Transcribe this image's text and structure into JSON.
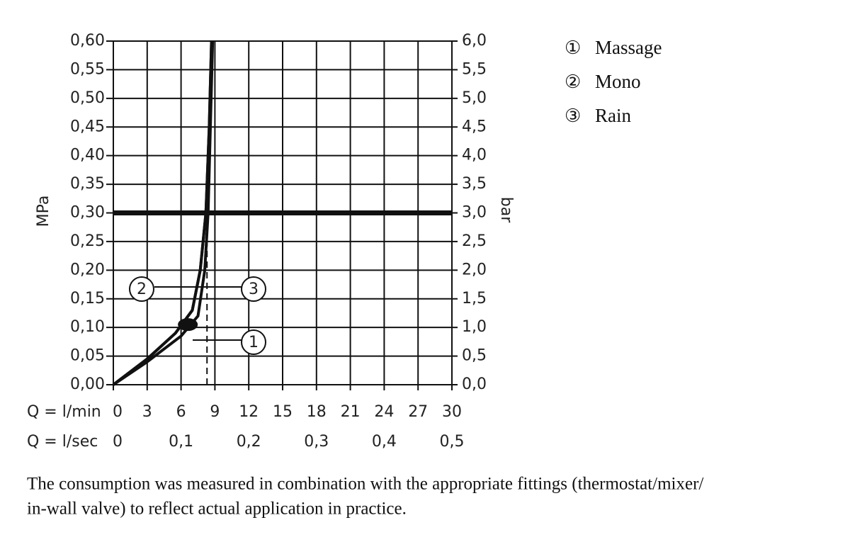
{
  "chart_data": {
    "type": "line",
    "xlabel": "Q = l/min",
    "x2label": "Q = l/sec",
    "ylabel": "MPa",
    "y2label": "bar",
    "xlim": [
      0,
      30
    ],
    "xticks": [
      0,
      3,
      6,
      9,
      12,
      15,
      18,
      21,
      24,
      27,
      30
    ],
    "x2lim": [
      0,
      0.5
    ],
    "x2ticks": [
      0,
      {
        "value": 0.1,
        "label": "0,1"
      },
      {
        "value": 0.2,
        "label": "0,2"
      },
      {
        "value": 0.3,
        "label": "0,3"
      },
      {
        "value": 0.4,
        "label": "0,4"
      },
      {
        "value": 0.5,
        "label": "0,5"
      }
    ],
    "ylim": [
      0,
      0.6
    ],
    "yticks": [
      {
        "value": 0,
        "label": "0,00"
      },
      {
        "value": 0.05,
        "label": "0,05"
      },
      {
        "value": 0.1,
        "label": "0,10"
      },
      {
        "value": 0.15,
        "label": "0,15"
      },
      {
        "value": 0.2,
        "label": "0,20"
      },
      {
        "value": 0.25,
        "label": "0,25"
      },
      {
        "value": 0.3,
        "label": "0,30"
      },
      {
        "value": 0.35,
        "label": "0,35"
      },
      {
        "value": 0.4,
        "label": "0,40"
      },
      {
        "value": 0.45,
        "label": "0,45"
      },
      {
        "value": 0.5,
        "label": "0,50"
      },
      {
        "value": 0.55,
        "label": "0,55"
      },
      {
        "value": 0.6,
        "label": "0,60"
      }
    ],
    "y2lim": [
      0,
      6
    ],
    "y2ticks": [
      {
        "value": 0,
        "label": "0,0"
      },
      {
        "value": 0.5,
        "label": "0,5"
      },
      {
        "value": 1,
        "label": "1,0"
      },
      {
        "value": 1.5,
        "label": "1,5"
      },
      {
        "value": 2,
        "label": "2,0"
      },
      {
        "value": 2.5,
        "label": "2,5"
      },
      {
        "value": 3,
        "label": "3,0"
      },
      {
        "value": 3.5,
        "label": "3,5"
      },
      {
        "value": 4,
        "label": "4,0"
      },
      {
        "value": 4.5,
        "label": "4,5"
      },
      {
        "value": 5,
        "label": "5,0"
      },
      {
        "value": 5.5,
        "label": "5,5"
      },
      {
        "value": 6,
        "label": "6,0"
      }
    ],
    "grid": true,
    "color": "#111111",
    "reference_y": 0.3,
    "dashed_x": 8.3,
    "dashed_x_top": 0.25,
    "operating_point": {
      "x": 6.6,
      "y": 0.105
    },
    "series": [
      {
        "name": "Massage",
        "symbol": "①",
        "callout": "1",
        "color": "#111111",
        "x": [
          0,
          3,
          6,
          7.5,
          8.1,
          8.4,
          8.6,
          8.8
        ],
        "values": [
          0,
          0.04,
          0.085,
          0.12,
          0.2,
          0.3,
          0.45,
          0.6
        ]
      },
      {
        "name": "Mono",
        "symbol": "②",
        "callout": "2",
        "color": "#111111",
        "x": [
          0,
          3,
          5.5,
          7,
          7.7,
          8.2,
          8.5,
          8.7
        ],
        "values": [
          0,
          0.045,
          0.09,
          0.13,
          0.2,
          0.3,
          0.45,
          0.6
        ]
      },
      {
        "name": "Rain",
        "symbol": "③",
        "callout": "3",
        "color": "#111111",
        "x": [
          0,
          3,
          5.5,
          7,
          7.7,
          8.2,
          8.5,
          8.7
        ],
        "values": [
          0,
          0.045,
          0.09,
          0.13,
          0.2,
          0.3,
          0.45,
          0.6
        ]
      }
    ]
  },
  "footnote": [
    "The consumption was measured in combination with the appropriate fittings (thermostat/mixer/",
    "in-wall valve) to reflect actual application in practice."
  ]
}
